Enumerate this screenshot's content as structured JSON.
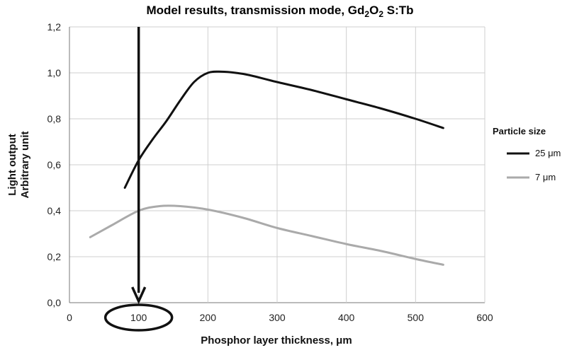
{
  "chart_data": {
    "type": "line",
    "title": {
      "prefix": "Model results, transmission mode, Gd",
      "sub1": "2",
      "mid": "O",
      "sub2": "2",
      "suffix": " S:Tb"
    },
    "xlabel": "Phosphor layer thickness, μm",
    "ylabel": [
      "Light output",
      "Arbitrary unit"
    ],
    "xlim": [
      0,
      600
    ],
    "ylim": [
      0,
      1.2
    ],
    "x_ticks": [
      "0",
      "100",
      "200",
      "300",
      "400",
      "500",
      "600"
    ],
    "x_tick_values": [
      0,
      100,
      200,
      300,
      400,
      500,
      600
    ],
    "y_ticks": [
      "0,0",
      "0,2",
      "0,4",
      "0,6",
      "0,8",
      "1,0",
      "1,2"
    ],
    "y_tick_values": [
      0,
      0.2,
      0.4,
      0.6,
      0.8,
      1.0,
      1.2
    ],
    "grid": true,
    "legend": {
      "title": "Particle size",
      "position": "right"
    },
    "series": [
      {
        "name": "25 μm",
        "color": "#111111",
        "x": [
          80,
          100,
          120,
          140,
          160,
          180,
          200,
          220,
          240,
          260,
          300,
          350,
          400,
          450,
          500,
          540
        ],
        "y": [
          0.5,
          0.62,
          0.71,
          0.79,
          0.88,
          0.96,
          1.0,
          1.005,
          1.0,
          0.99,
          0.96,
          0.925,
          0.885,
          0.845,
          0.8,
          0.76
        ]
      },
      {
        "name": "7 μm",
        "color": "#aaaaaa",
        "x": [
          30,
          60,
          100,
          130,
          160,
          200,
          250,
          300,
          350,
          400,
          450,
          500,
          540
        ],
        "y": [
          0.285,
          0.335,
          0.4,
          0.42,
          0.42,
          0.405,
          0.37,
          0.325,
          0.29,
          0.255,
          0.225,
          0.19,
          0.165
        ]
      }
    ],
    "annotation": {
      "type": "vertical-arrow-with-circled-tick",
      "x": 100,
      "y_from": 1.2,
      "y_to": 0,
      "circled_tick": "100"
    }
  }
}
